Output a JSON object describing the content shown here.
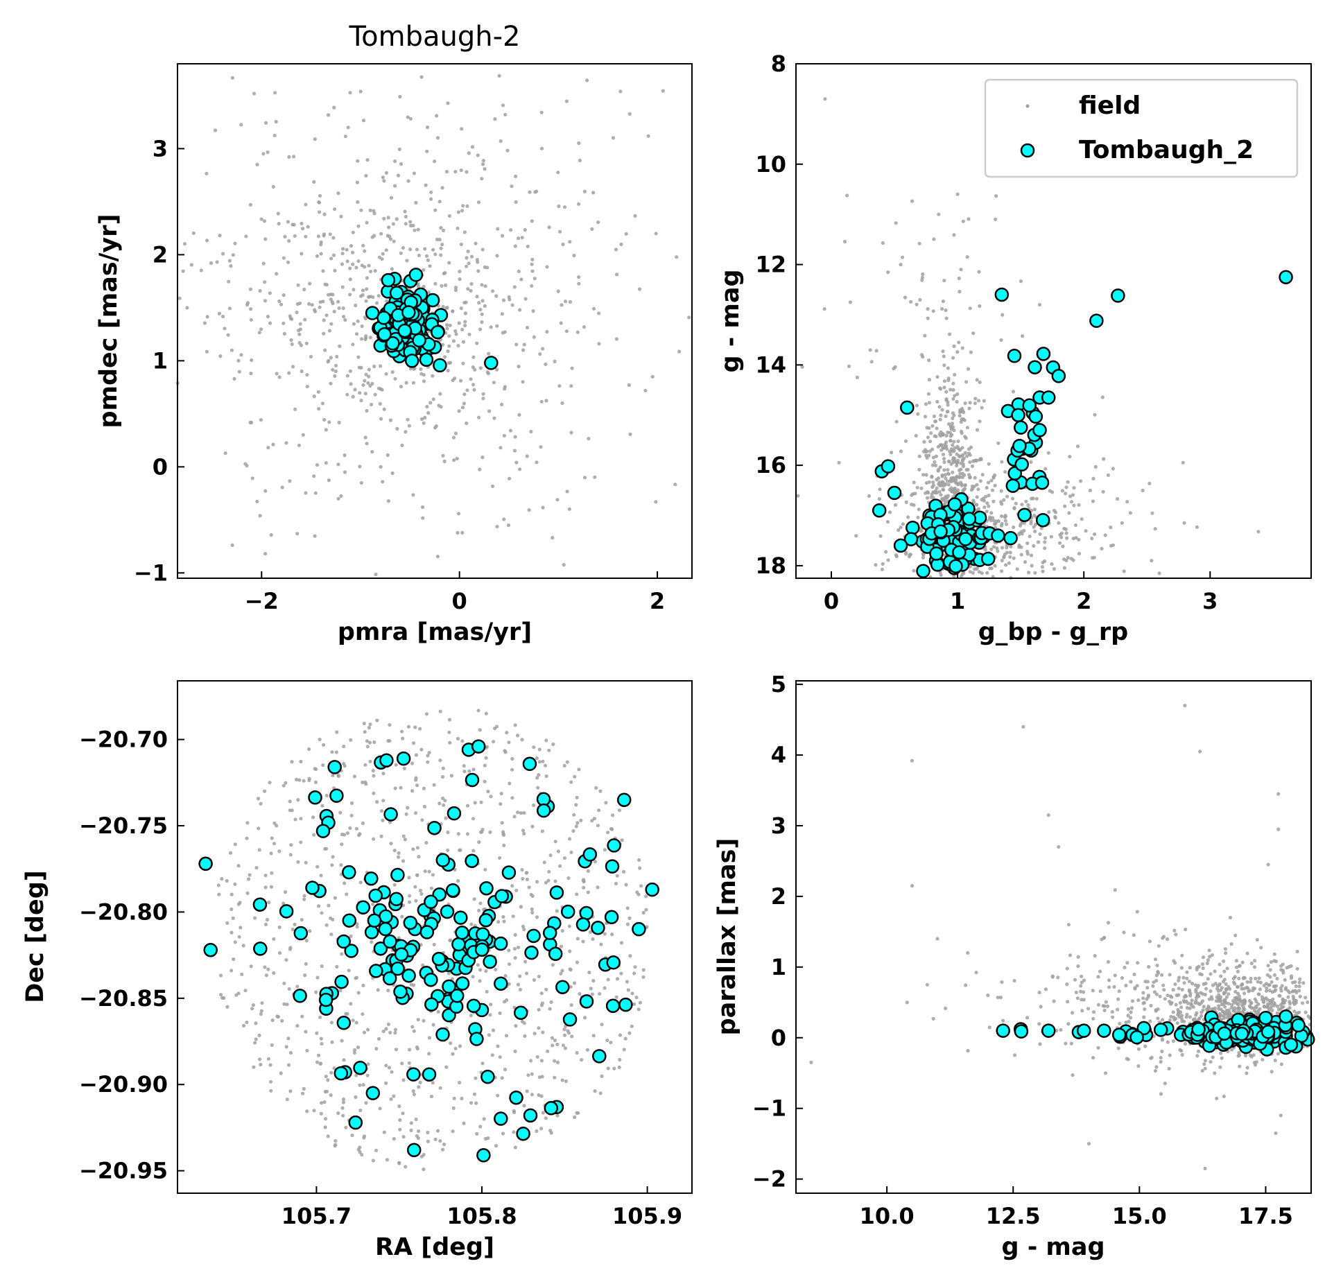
{
  "colors": {
    "field": "#a0a0a0",
    "member_fill": "#00ffff",
    "member_edge": "#000000",
    "axes": "#000000",
    "legend_border": "#cccccc"
  },
  "legend": {
    "placement": "upper-right of top-right panel",
    "entries": [
      {
        "label": "field",
        "marker": "small-gray-dot"
      },
      {
        "label": "Tombaugh_2",
        "marker": "cyan-circle"
      }
    ]
  },
  "chart_data": [
    {
      "id": "pm",
      "type": "scatter",
      "title": "Tombaugh-2",
      "xlabel": "pmra [mas/yr]",
      "ylabel": "pmdec [mas/yr]",
      "xlim": [
        -2.85,
        2.35
      ],
      "ylim": [
        -1.05,
        3.8
      ],
      "xticks": [
        {
          "v": -2,
          "t": "−2"
        },
        {
          "v": 0,
          "t": "0"
        },
        {
          "v": 2,
          "t": "2"
        }
      ],
      "yticks": [
        {
          "v": -1,
          "t": "−1"
        },
        {
          "v": 0,
          "t": "0"
        },
        {
          "v": 1,
          "t": "1"
        },
        {
          "v": 2,
          "t": "2"
        },
        {
          "v": 3,
          "t": "3"
        }
      ],
      "field": {
        "name": "field",
        "seed": 11,
        "groups": [
          {
            "n": 520,
            "cx": -0.7,
            "cy": 1.6,
            "sx": 0.9,
            "sy": 0.85
          },
          {
            "n": 260,
            "cx": -0.3,
            "cy": 1.3,
            "sx": 1.5,
            "sy": 1.4
          },
          {
            "n": 110,
            "cx": -0.5,
            "cy": 1.4,
            "sx": 0.3,
            "sy": 0.25
          }
        ]
      },
      "members": {
        "name": "Tombaugh_2",
        "seed": 21,
        "groups": [
          {
            "n": 150,
            "cx": -0.52,
            "cy": 1.35,
            "sx": 0.13,
            "sy": 0.16
          }
        ],
        "points": [
          [
            0.32,
            0.98
          ],
          [
            -0.44,
            1.81
          ],
          [
            -0.72,
            1.76
          ],
          [
            -0.88,
            1.45
          ],
          [
            -0.22,
            1.27
          ],
          [
            -0.48,
            1.0
          ]
        ]
      }
    },
    {
      "id": "cmd",
      "type": "scatter",
      "xlabel": "g_bp - g_rp",
      "ylabel": "g - mag",
      "xlim": [
        -0.28,
        3.8
      ],
      "ylim": [
        18.25,
        8.0
      ],
      "yinverted": true,
      "xticks": [
        {
          "v": 0,
          "t": "0"
        },
        {
          "v": 1,
          "t": "1"
        },
        {
          "v": 2,
          "t": "2"
        },
        {
          "v": 3,
          "t": "3"
        }
      ],
      "yticks": [
        {
          "v": 8,
          "t": "8"
        },
        {
          "v": 10,
          "t": "10"
        },
        {
          "v": 12,
          "t": "12"
        },
        {
          "v": 14,
          "t": "14"
        },
        {
          "v": 16,
          "t": "16"
        },
        {
          "v": 18,
          "t": "18"
        }
      ],
      "field": {
        "name": "field",
        "seed": 33,
        "groups": [
          {
            "n": 520,
            "cx": 0.95,
            "cy": 16.4,
            "sx": 0.13,
            "sy": 1.1
          },
          {
            "n": 320,
            "cx": 1.15,
            "cy": 17.4,
            "sx": 0.35,
            "sy": 0.55
          },
          {
            "n": 140,
            "cx": 1.6,
            "cy": 17.2,
            "sx": 0.55,
            "sy": 0.8
          },
          {
            "n": 70,
            "cx": 0.8,
            "cy": 13.0,
            "sx": 0.35,
            "sy": 1.6
          }
        ],
        "points": [
          [
            -0.05,
            8.7
          ],
          [
            1.0,
            10.6
          ],
          [
            1.3,
            11.1
          ],
          [
            0.85,
            11.0
          ],
          [
            0.55,
            12.0
          ],
          [
            1.65,
            12.8
          ],
          [
            2.05,
            16.5
          ]
        ]
      },
      "members": {
        "name": "Tombaugh_2",
        "seed": 44,
        "groups": [
          {
            "n": 95,
            "cx": 0.92,
            "cy": 17.4,
            "sx": 0.15,
            "sy": 0.35
          },
          {
            "n": 25,
            "cx": 1.55,
            "cy": 15.8,
            "sx": 0.08,
            "sy": 0.55
          }
        ],
        "points": [
          [
            3.6,
            12.25
          ],
          [
            2.27,
            12.62
          ],
          [
            2.1,
            13.12
          ],
          [
            1.35,
            12.6
          ],
          [
            1.45,
            13.82
          ],
          [
            1.68,
            13.78
          ],
          [
            1.8,
            14.22
          ],
          [
            1.65,
            14.65
          ],
          [
            1.72,
            14.65
          ],
          [
            0.6,
            14.85
          ],
          [
            0.4,
            16.12
          ],
          [
            0.45,
            16.02
          ],
          [
            0.5,
            16.55
          ],
          [
            0.38,
            16.9
          ],
          [
            0.55,
            17.6
          ],
          [
            1.32,
            17.4
          ],
          [
            1.42,
            17.45
          ],
          [
            1.65,
            15.3
          ],
          [
            1.4,
            14.92
          ],
          [
            1.48,
            15.0
          ]
        ]
      }
    },
    {
      "id": "sky",
      "type": "scatter",
      "xlabel": "RA [deg]",
      "ylabel": "Dec [deg]",
      "xlim": [
        105.616,
        105.927
      ],
      "ylim": [
        -20.963,
        -20.666
      ],
      "xticks": [
        {
          "v": 105.7,
          "t": "105.7"
        },
        {
          "v": 105.8,
          "t": "105.8"
        },
        {
          "v": 105.9,
          "t": "105.9"
        }
      ],
      "yticks": [
        {
          "v": -20.7,
          "t": "−20.70"
        },
        {
          "v": -20.75,
          "t": "−20.75"
        },
        {
          "v": -20.8,
          "t": "−20.80"
        },
        {
          "v": -20.85,
          "t": "−20.85"
        },
        {
          "v": -20.9,
          "t": "−20.90"
        },
        {
          "v": -20.95,
          "t": "−20.95"
        }
      ],
      "field": {
        "name": "field",
        "seed": 55,
        "disk": {
          "n": 950,
          "cx": 105.772,
          "cy": -20.815,
          "rx": 0.135,
          "ry": 0.135
        }
      },
      "members": {
        "name": "Tombaugh_2",
        "seed": 66,
        "groups": [
          {
            "n": 95,
            "cx": 105.775,
            "cy": -20.82,
            "sx": 0.028,
            "sy": 0.02
          }
        ],
        "disk": {
          "n": 75,
          "cx": 105.772,
          "cy": -20.82,
          "rx": 0.125,
          "ry": 0.12
        },
        "points": [
          [
            105.633,
            -20.772
          ],
          [
            105.636,
            -20.822
          ],
          [
            105.903,
            -20.787
          ],
          [
            105.798,
            -20.704
          ],
          [
            105.801,
            -20.941
          ],
          [
            105.759,
            -20.938
          ],
          [
            105.886,
            -20.735
          ],
          [
            105.711,
            -20.716
          ]
        ]
      }
    },
    {
      "id": "plx",
      "type": "scatter",
      "xlabel": "g - mag",
      "ylabel": "parallax [mas]",
      "xlim": [
        8.2,
        18.4
      ],
      "ylim": [
        -2.2,
        5.05
      ],
      "xticks": [
        {
          "v": 10.0,
          "t": "10.0"
        },
        {
          "v": 12.5,
          "t": "12.5"
        },
        {
          "v": 15.0,
          "t": "15.0"
        },
        {
          "v": 17.5,
          "t": "17.5"
        }
      ],
      "yticks": [
        {
          "v": -2,
          "t": "−2"
        },
        {
          "v": -1,
          "t": "−1"
        },
        {
          "v": 0,
          "t": "0"
        },
        {
          "v": 1,
          "t": "1"
        },
        {
          "v": 2,
          "t": "2"
        },
        {
          "v": 3,
          "t": "3"
        },
        {
          "v": 4,
          "t": "4"
        },
        {
          "v": 5,
          "t": "5"
        }
      ],
      "field": {
        "name": "field",
        "seed": 77,
        "groups": [
          {
            "n": 700,
            "cx": 17.2,
            "cy": 0.35,
            "sx": 0.75,
            "sy": 0.35
          },
          {
            "n": 240,
            "cx": 15.8,
            "cy": 0.45,
            "sx": 1.0,
            "sy": 0.5
          },
          {
            "n": 80,
            "cx": 14.0,
            "cy": 0.55,
            "sx": 1.1,
            "sy": 0.55
          }
        ],
        "points": [
          [
            15.9,
            4.7
          ],
          [
            16.2,
            4.05
          ],
          [
            12.7,
            4.4
          ],
          [
            13.2,
            3.15
          ],
          [
            10.5,
            3.92
          ],
          [
            17.75,
            3.45
          ],
          [
            17.75,
            2.95
          ],
          [
            17.55,
            2.45
          ],
          [
            13.4,
            2.7
          ],
          [
            10.5,
            2.15
          ],
          [
            11.0,
            1.4
          ],
          [
            8.5,
            -0.35
          ],
          [
            10.8,
            0.75
          ],
          [
            14.0,
            -1.5
          ],
          [
            17.7,
            -1.35
          ],
          [
            16.3,
            -1.85
          ],
          [
            17.8,
            -1.1
          ],
          [
            10.4,
            0.5
          ],
          [
            12.0,
            0.6
          ],
          [
            11.6,
            1.2
          ],
          [
            13.6,
            1.6
          ],
          [
            16.8,
            1.7
          ]
        ]
      },
      "members": {
        "name": "Tombaugh_2",
        "seed": 88,
        "groups": [
          {
            "n": 110,
            "cx": 17.35,
            "cy": 0.06,
            "sx": 0.45,
            "sy": 0.1
          }
        ],
        "uniform": {
          "n": 45,
          "x0": 14.6,
          "x1": 17.6,
          "y0": 0.0,
          "y1": 0.14
        },
        "points": [
          [
            12.3,
            0.1
          ],
          [
            12.65,
            0.12
          ],
          [
            12.66,
            0.09
          ],
          [
            13.2,
            0.1
          ],
          [
            13.8,
            0.08
          ],
          [
            13.9,
            0.1
          ],
          [
            14.3,
            0.1
          ],
          [
            17.9,
            0.3
          ],
          [
            17.9,
            -0.14
          ],
          [
            18.0,
            -0.1
          ],
          [
            17.5,
            0.28
          ]
        ]
      }
    }
  ]
}
